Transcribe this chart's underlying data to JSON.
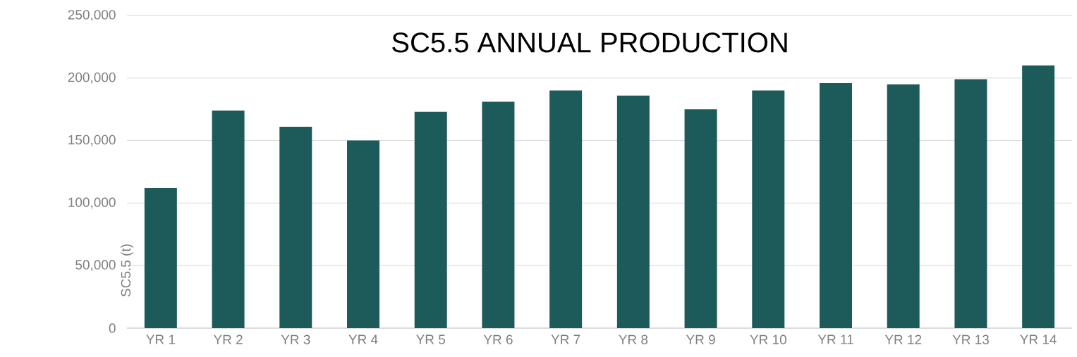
{
  "chart_data": {
    "type": "bar",
    "title": "SC5.5 ANNUAL PRODUCTION",
    "ylabel": "SC5.5 (t)",
    "categories": [
      "YR 1",
      "YR 2",
      "YR 3",
      "YR 4",
      "YR 5",
      "YR 6",
      "YR 7",
      "YR 8",
      "YR 9",
      "YR 10",
      "YR 11",
      "YR 12",
      "YR 13",
      "YR 14"
    ],
    "values": [
      112000,
      174000,
      161000,
      150000,
      173000,
      181000,
      190000,
      186000,
      175000,
      190000,
      196000,
      195000,
      199000,
      210000
    ],
    "color": "#1d5a5a",
    "ylim": [
      0,
      250000
    ],
    "yticks": [
      {
        "value": 0,
        "label": "0"
      },
      {
        "value": 50000,
        "label": "50,000"
      },
      {
        "value": 100000,
        "label": "100,000"
      },
      {
        "value": 150000,
        "label": "150,000"
      },
      {
        "value": 200000,
        "label": "200,000"
      },
      {
        "value": 250000,
        "label": "250,000"
      }
    ],
    "grid": "y"
  }
}
